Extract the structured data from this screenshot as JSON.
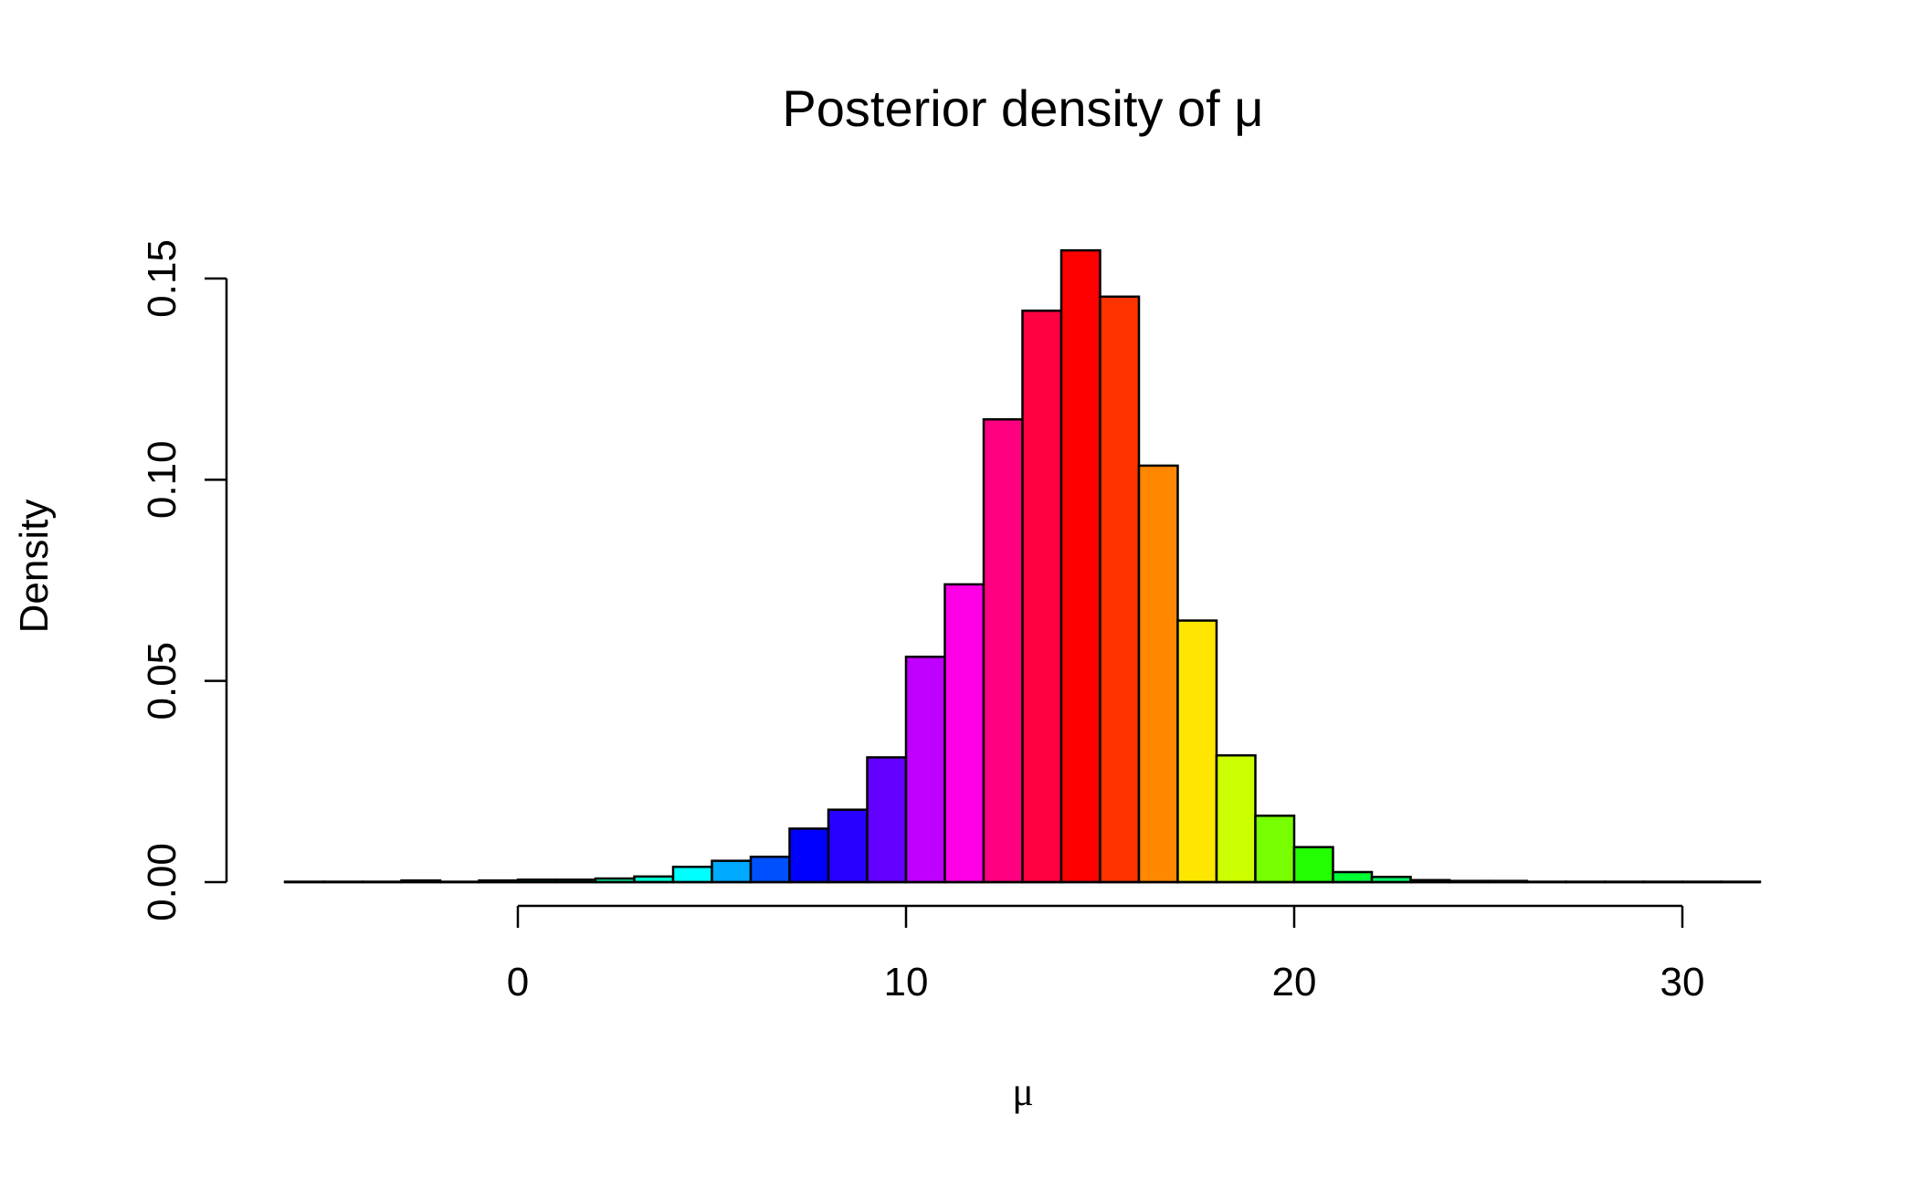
{
  "chart_data": {
    "type": "bar",
    "title": "Posterior density of μ",
    "xlabel": "μ",
    "ylabel": "Density",
    "xlim": [
      -6,
      32
    ],
    "ylim": [
      0,
      0.16
    ],
    "x_ticks": [
      0,
      10,
      20,
      30
    ],
    "x_tick_labels": [
      "0",
      "10",
      "20",
      "30"
    ],
    "y_ticks": [
      0,
      0.05,
      0.1,
      0.15
    ],
    "y_tick_labels": [
      "0.00",
      "0.05",
      "0.10",
      "0.15"
    ],
    "bin_width": 1,
    "bins_left": [
      -6,
      -5,
      -4,
      -3,
      -2,
      -1,
      0,
      1,
      2,
      3,
      4,
      5,
      6,
      7,
      8,
      9,
      10,
      11,
      12,
      13,
      14,
      15,
      16,
      17,
      18,
      19,
      20,
      21,
      22,
      23,
      24,
      25,
      26,
      27,
      28,
      29,
      30,
      31
    ],
    "values": [
      0.0001,
      0.0001,
      0.0001,
      0.0004,
      0.0001,
      0.0004,
      0.0006,
      0.0006,
      0.0009,
      0.0014,
      0.0038,
      0.0053,
      0.0063,
      0.0133,
      0.018,
      0.031,
      0.056,
      0.074,
      0.115,
      0.142,
      0.157,
      0.1455,
      0.1035,
      0.065,
      0.0315,
      0.0165,
      0.0087,
      0.0025,
      0.0013,
      0.0005,
      0.0003,
      0.0003,
      0.0001,
      0.0001,
      0.0001,
      0.0001,
      0.0001,
      0.0001
    ],
    "colors": [
      "#00FF6F",
      "#00FF98",
      "#00FFC1",
      "#00FFEA",
      "#00EAFF",
      "#00C1FF",
      "#00FF66",
      "#00FF8A",
      "#00FFAE",
      "#00FFD2",
      "#00FFFF",
      "#00AAFF",
      "#0050FF",
      "#0000FF",
      "#2800FF",
      "#6400FF",
      "#BF00FF",
      "#FF00E6",
      "#FF0080",
      "#FF0040",
      "#FF0000",
      "#FF3300",
      "#FF8800",
      "#FFE600",
      "#CCFF00",
      "#77FF00",
      "#22FF00",
      "#00FF33",
      "#00FF66",
      "#00FF66",
      "#00FF66",
      "#00FF66",
      "#00FF66",
      "#00FF66",
      "#00FF66",
      "#00FF66",
      "#00FF66",
      "#00FF66"
    ],
    "grid": false,
    "legend": "none"
  }
}
